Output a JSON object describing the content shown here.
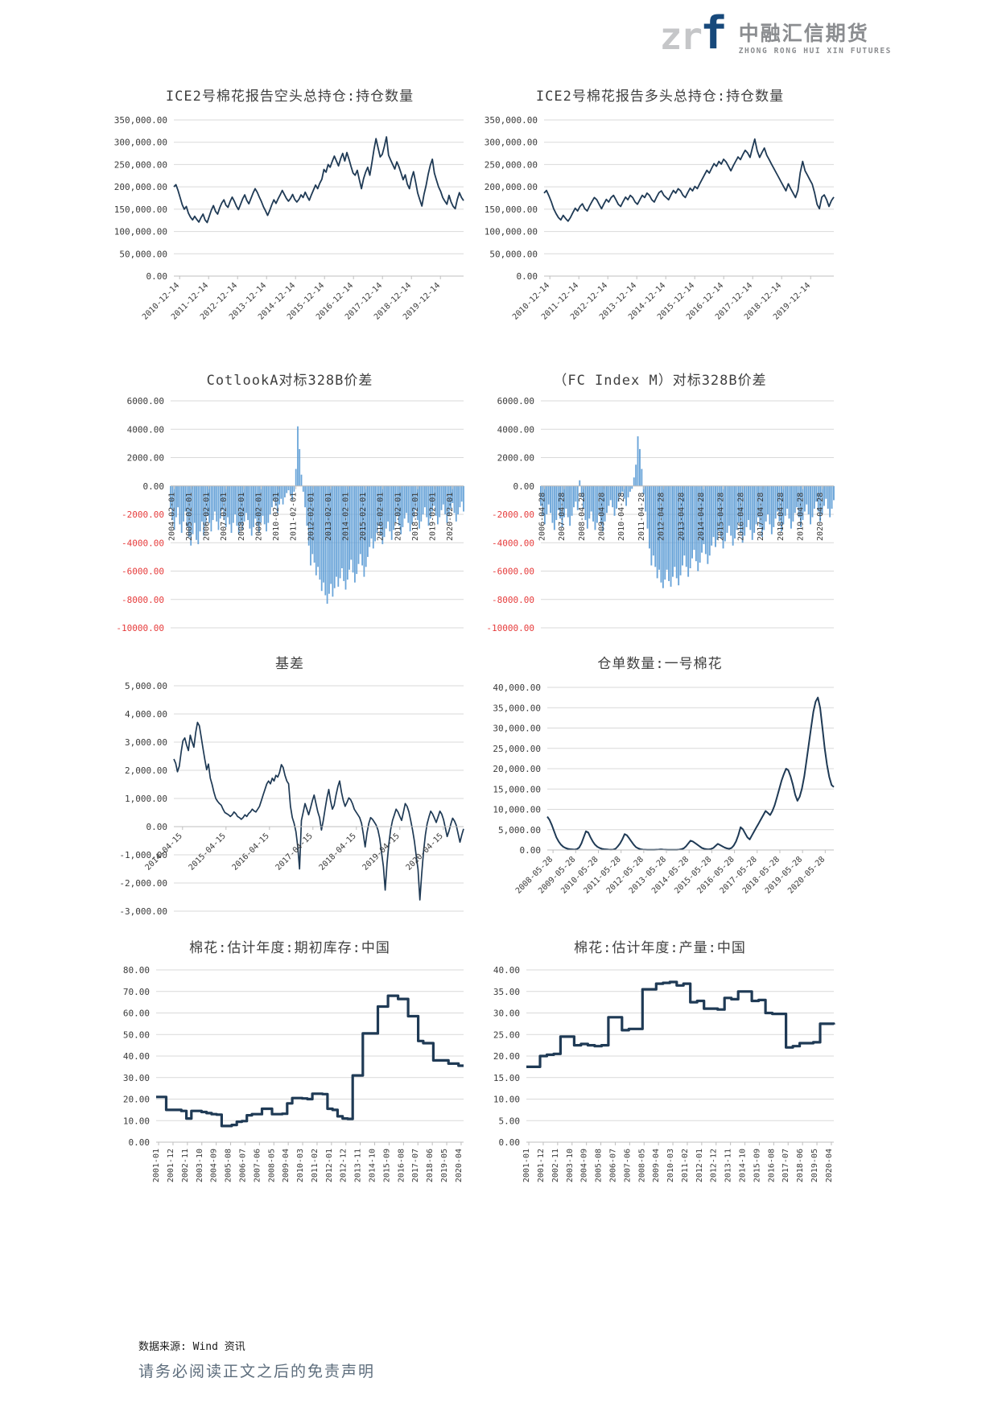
{
  "logo": {
    "zr": "zr",
    "f": "f",
    "cn": "中融汇信期货",
    "en": "ZHONG RONG HUI XIN FUTURES"
  },
  "footer": {
    "source": "数据来源: Wind 资讯",
    "disclaimer": "请务必阅读正文之后的免责声明"
  },
  "colors": {
    "line": "#1f3a55",
    "bar": "#5b9bd5",
    "grid": "#d9d9d9",
    "axis": "#bfbfbf",
    "tick_text": "#3b3b3b",
    "neg_red": "#e63c3c",
    "title": "#3f3f3f"
  },
  "chart_data": [
    {
      "type": "line",
      "title": "ICE2号棉花报告空头总持仓:持仓数量",
      "ylim": [
        0,
        350000
      ],
      "ystep": 50000,
      "yformat": "comma",
      "neg_red": false,
      "x_labels": [
        "2010-12-14",
        "2011-12-14",
        "2012-12-14",
        "2013-12-14",
        "2014-12-14",
        "2015-12-14",
        "2016-12-14",
        "2017-12-14",
        "2018-12-14",
        "2019-12-14"
      ],
      "x_rotate": 45,
      "x_anchor": "bottom",
      "tick_start": 0.02,
      "tick_span": 0.9,
      "value_scale": 1000,
      "values": [
        200,
        205,
        192,
        176,
        160,
        150,
        156,
        141,
        132,
        126,
        134,
        127,
        121,
        131,
        139,
        126,
        120,
        134,
        148,
        158,
        145,
        139,
        153,
        164,
        171,
        159,
        154,
        167,
        177,
        168,
        157,
        149,
        161,
        173,
        182,
        170,
        162,
        174,
        186,
        196,
        188,
        177,
        167,
        155,
        146,
        136,
        147,
        160,
        171,
        163,
        173,
        182,
        192,
        183,
        174,
        168,
        174,
        183,
        172,
        166,
        172,
        182,
        176,
        188,
        178,
        170,
        182,
        193,
        204,
        196,
        208,
        217,
        239,
        233,
        250,
        244,
        257,
        269,
        258,
        247,
        263,
        275,
        258,
        277,
        262,
        246,
        231,
        226,
        237,
        216,
        196,
        218,
        233,
        244,
        226,
        253,
        283,
        308,
        287,
        267,
        273,
        291,
        312,
        271,
        260,
        250,
        240,
        256,
        245,
        231,
        216,
        227,
        206,
        196,
        219,
        234,
        211,
        186,
        171,
        157,
        183,
        203,
        228,
        248,
        262,
        231,
        215,
        200,
        190,
        176,
        168,
        161,
        181,
        166,
        156,
        151,
        172,
        187,
        176,
        169
      ]
    },
    {
      "type": "line",
      "title": "ICE2号棉花报告多头总持仓:持仓数量",
      "ylim": [
        0,
        350000
      ],
      "ystep": 50000,
      "yformat": "comma",
      "neg_red": false,
      "x_labels": [
        "2010-12-14",
        "2011-12-14",
        "2012-12-14",
        "2013-12-14",
        "2014-12-14",
        "2015-12-14",
        "2016-12-14",
        "2017-12-14",
        "2018-12-14",
        "2019-12-14"
      ],
      "x_rotate": 45,
      "x_anchor": "bottom",
      "tick_start": 0.02,
      "tick_span": 0.9,
      "value_scale": 1000,
      "values": [
        186,
        192,
        180,
        167,
        151,
        140,
        131,
        126,
        136,
        129,
        123,
        131,
        142,
        152,
        146,
        156,
        162,
        151,
        146,
        157,
        167,
        176,
        171,
        161,
        151,
        162,
        172,
        166,
        176,
        181,
        171,
        161,
        156,
        167,
        177,
        171,
        181,
        176,
        166,
        161,
        171,
        181,
        176,
        186,
        181,
        171,
        166,
        177,
        187,
        191,
        181,
        176,
        171,
        182,
        192,
        186,
        196,
        191,
        181,
        176,
        187,
        197,
        191,
        201,
        196,
        207,
        217,
        227,
        237,
        231,
        242,
        252,
        246,
        257,
        251,
        262,
        256,
        246,
        236,
        247,
        257,
        267,
        261,
        272,
        282,
        276,
        266,
        287,
        307,
        281,
        266,
        277,
        287,
        271,
        261,
        251,
        241,
        231,
        221,
        211,
        201,
        191,
        207,
        196,
        186,
        176,
        192,
        232,
        257,
        236,
        226,
        216,
        206,
        186,
        161,
        151,
        177,
        182,
        171,
        156,
        169,
        177
      ]
    },
    {
      "type": "bar",
      "title": "CotlookA对标328B价差",
      "ylim": [
        -10000,
        6000
      ],
      "ystep": 2000,
      "yformat": "plain",
      "neg_red": true,
      "x_labels": [
        "2004-02-01",
        "2005-02-01",
        "2006-02-01",
        "2007-02-01",
        "2008-02-01",
        "2009-02-01",
        "2010-02-01",
        "2011-02-01",
        "2012-02-01",
        "2013-02-01",
        "2014-02-01",
        "2015-02-01",
        "2016-02-01",
        "2017-02-01",
        "2018-02-01",
        "2019-02-01",
        "2020-02-01"
      ],
      "x_rotate": 90,
      "x_anchor": "zero",
      "tick_start": 0.012,
      "tick_span": 0.95,
      "values": [
        -1600,
        -2400,
        -3100,
        -2200,
        -1500,
        -2700,
        -3300,
        -2500,
        -1800,
        -2900,
        -3600,
        -4200,
        -3400,
        -2600,
        -3800,
        -4100,
        -3200,
        -2500,
        -3500,
        -2800,
        -2100,
        -2600,
        -3200,
        -2400,
        -1800,
        -2500,
        -3100,
        -2300,
        -1700,
        -2400,
        -2900,
        -2200,
        -2700,
        -3300,
        -2600,
        -2000,
        -2800,
        -3400,
        -2700,
        -3100,
        -2500,
        -1900,
        -2400,
        -3000,
        -3500,
        -2900,
        -2300,
        -2800,
        -3300,
        -2600,
        -2100,
        -2700,
        -3200,
        -2600,
        -2000,
        -1500,
        -1000,
        -1400,
        -1900,
        -1300,
        -900,
        -1300,
        -800,
        -500,
        -300,
        -600,
        -1000,
        -400,
        1200,
        4200,
        2600,
        800,
        -400,
        -1500,
        -2800,
        -4200,
        -5600,
        -4800,
        -5400,
        -6300,
        -5700,
        -6600,
        -7400,
        -6800,
        -7700,
        -8300,
        -7600,
        -6900,
        -7800,
        -7200,
        -6400,
        -7100,
        -6500,
        -5800,
        -6700,
        -7300,
        -6600,
        -5900,
        -5200,
        -6100,
        -6800,
        -6200,
        -5500,
        -4800,
        -5600,
        -6400,
        -5700,
        -5000,
        -4300,
        -3700,
        -4400,
        -3900,
        -3300,
        -2800,
        -3500,
        -4100,
        -3600,
        -3000,
        -2500,
        -3200,
        -3800,
        -3100,
        -2600,
        -2100,
        -2800,
        -3400,
        -2900,
        -2300,
        -1900,
        -2600,
        -3200,
        -2700,
        -2200,
        -1700,
        -2400,
        -3000,
        -2500,
        -2000,
        -1500,
        -2200,
        -2800,
        -2300,
        -1800,
        -1400,
        -2100,
        -2700,
        -2200,
        -1700,
        -1300,
        -2000,
        -2600,
        -2100,
        -1600,
        -1200,
        -1900,
        -2500,
        -2000,
        -1500,
        -1100,
        -1800
      ]
    },
    {
      "type": "bar",
      "title": "（FC Index M）对标328B价差",
      "ylim": [
        -10000,
        6000
      ],
      "ystep": 2000,
      "yformat": "plain",
      "neg_red": true,
      "x_labels": [
        "2006-04-28",
        "2007-04-28",
        "2008-04-28",
        "2009-04-28",
        "2010-04-28",
        "2011-04-28",
        "2012-04-28",
        "2013-04-28",
        "2014-04-28",
        "2015-04-28",
        "2016-04-28",
        "2017-04-28",
        "2018-04-28",
        "2019-04-28",
        "2020-04-28"
      ],
      "x_rotate": 90,
      "x_anchor": "zero",
      "tick_start": 0.012,
      "tick_span": 0.95,
      "values": [
        -1400,
        -2100,
        -2700,
        -2000,
        -1300,
        -1900,
        -2600,
        -3100,
        -2400,
        -1700,
        -2300,
        -2900,
        -2200,
        -1600,
        -2200,
        -2800,
        -2100,
        -1500,
        -1100,
        -1700,
        400,
        -800,
        -1600,
        -2400,
        -3000,
        -2300,
        -1800,
        -2500,
        -3100,
        -2600,
        -2000,
        -2700,
        -3200,
        -2500,
        -1900,
        -1400,
        -1000,
        -1500,
        -2100,
        -1600,
        -1100,
        -700,
        -400,
        -900,
        -1400,
        -800,
        -400,
        -200,
        600,
        1500,
        3500,
        2600,
        1200,
        -600,
        -1800,
        -3000,
        -4400,
        -5600,
        -4900,
        -5700,
        -6500,
        -5900,
        -6800,
        -7200,
        -6600,
        -5900,
        -6700,
        -7100,
        -6400,
        -5700,
        -6500,
        -7000,
        -6300,
        -5600,
        -4900,
        -5700,
        -6400,
        -5800,
        -5100,
        -4500,
        -5300,
        -6000,
        -5400,
        -4700,
        -4100,
        -4800,
        -5500,
        -4900,
        -4200,
        -3600,
        -4300,
        -3800,
        -3200,
        -3700,
        -4400,
        -3900,
        -3300,
        -2800,
        -3500,
        -4200,
        -3700,
        -3100,
        -2600,
        -3300,
        -4000,
        -3500,
        -2900,
        -2400,
        -3100,
        -3800,
        -3300,
        -2700,
        -2200,
        -2900,
        -3600,
        -3100,
        -2500,
        -2000,
        -2700,
        -3400,
        -2900,
        -2300,
        -1800,
        -2500,
        -3200,
        -2700,
        -2100,
        -1600,
        -2300,
        -3000,
        -2500,
        -1900,
        -1500,
        -2200,
        -2900,
        -2400,
        -1800,
        -1300,
        -2000,
        -2700,
        -2200,
        -1600,
        -1100,
        -1800,
        -2500,
        -2000,
        -1400,
        -900,
        -1600,
        -2200,
        -1600,
        -1000
      ]
    },
    {
      "type": "line",
      "title": "基差",
      "ylim": [
        -3000,
        5000
      ],
      "ystep": 1000,
      "yformat": "comma",
      "neg_red": false,
      "x_labels": [
        "2014-04-15",
        "2015-04-15",
        "2016-04-15",
        "2017-04-15",
        "2018-04-15",
        "2019-04-15",
        "2020-04-15"
      ],
      "x_rotate": 45,
      "x_anchor": "zero",
      "tick_start": 0.03,
      "tick_span": 0.9,
      "values": [
        2400,
        2250,
        1950,
        2150,
        2650,
        3050,
        3150,
        2900,
        2700,
        3250,
        3020,
        2820,
        3350,
        3700,
        3580,
        3180,
        2780,
        2380,
        2020,
        2220,
        1720,
        1500,
        1220,
        1000,
        900,
        820,
        760,
        620,
        500,
        460,
        420,
        360,
        420,
        520,
        460,
        360,
        320,
        260,
        320,
        420,
        360,
        460,
        520,
        620,
        560,
        520,
        620,
        720,
        920,
        1120,
        1320,
        1520,
        1620,
        1520,
        1720,
        1620,
        1820,
        1760,
        1920,
        2200,
        2100,
        1820,
        1620,
        1520,
        720,
        320,
        120,
        -180,
        -720,
        -1500,
        220,
        520,
        820,
        620,
        420,
        660,
        920,
        1120,
        820,
        520,
        320,
        -120,
        220,
        620,
        1020,
        1320,
        920,
        620,
        760,
        1120,
        1420,
        1620,
        1220,
        920,
        720,
        860,
        1020,
        960,
        820,
        620,
        520,
        420,
        320,
        120,
        -280,
        -720,
        -220,
        120,
        320,
        260,
        160,
        60,
        -120,
        -420,
        -920,
        -1420,
        -2250,
        -1300,
        -600,
        -100,
        220,
        420,
        620,
        520,
        360,
        220,
        520,
        820,
        720,
        520,
        220,
        -120,
        -520,
        -1020,
        -1520,
        -2600,
        -1700,
        -900,
        -300,
        100,
        350,
        550,
        450,
        300,
        150,
        350,
        550,
        450,
        250,
        -50,
        -350,
        -150,
        100,
        300,
        200,
        50,
        -250,
        -550,
        -300,
        -80
      ]
    },
    {
      "type": "line",
      "title": "仓单数量:一号棉花",
      "ylim": [
        0,
        40000
      ],
      "ystep": 5000,
      "yformat": "comma",
      "neg_red": false,
      "x_labels": [
        "2008-05-28",
        "2009-05-28",
        "2010-05-28",
        "2011-05-28",
        "2012-05-28",
        "2013-05-28",
        "2014-05-28",
        "2015-05-28",
        "2016-05-28",
        "2017-05-28",
        "2018-05-28",
        "2019-05-28",
        "2020-05-28"
      ],
      "x_rotate": 45,
      "x_anchor": "bottom",
      "tick_start": 0.02,
      "tick_span": 0.95,
      "values": [
        8200,
        7400,
        6100,
        4600,
        3100,
        2100,
        1300,
        800,
        500,
        300,
        200,
        150,
        100,
        200,
        600,
        1600,
        3100,
        4600,
        4300,
        3100,
        2100,
        1300,
        800,
        500,
        300,
        200,
        150,
        100,
        80,
        100,
        300,
        900,
        1600,
        2600,
        3900,
        3600,
        2900,
        2100,
        1300,
        700,
        400,
        200,
        100,
        80,
        60,
        50,
        40,
        60,
        80,
        100,
        150,
        100,
        80,
        60,
        50,
        40,
        30,
        50,
        100,
        200,
        400,
        900,
        1600,
        2300,
        2100,
        1700,
        1300,
        900,
        500,
        300,
        200,
        150,
        250,
        500,
        1000,
        1500,
        1200,
        900,
        600,
        400,
        300,
        500,
        1100,
        2100,
        3600,
        5600,
        5100,
        4100,
        3100,
        2600,
        3600,
        4600,
        5600,
        6600,
        7600,
        8600,
        9600,
        9100,
        8600,
        9600,
        11000,
        13000,
        15000,
        17000,
        18600,
        20000,
        19600,
        18100,
        16100,
        13600,
        12100,
        13100,
        15100,
        18100,
        22000,
        26000,
        30000,
        34000,
        36500,
        37500,
        35000,
        30000,
        25000,
        21000,
        18000,
        16000,
        15500
      ]
    },
    {
      "type": "step",
      "title": "棉花:估计年度:期初库存:中国",
      "ylim": [
        0,
        80
      ],
      "ystep": 10,
      "yformat": "plain",
      "neg_red": false,
      "x_labels": [
        "2001-01",
        "2001-12",
        "2002-11",
        "2003-10",
        "2004-09",
        "2005-08",
        "2006-07",
        "2007-06",
        "2008-05",
        "2009-04",
        "2010-03",
        "2011-02",
        "2012-01",
        "2012-12",
        "2013-11",
        "2014-10",
        "2015-09",
        "2016-08",
        "2017-07",
        "2018-06",
        "2019-05",
        "2020-04"
      ],
      "x_rotate": 90,
      "x_anchor": "bottom",
      "tick_start": 0.008,
      "tick_span": 0.984,
      "values": [
        21,
        21,
        15,
        15,
        15,
        14.5,
        11,
        14.5,
        14.5,
        14,
        13.5,
        13,
        12.8,
        7.5,
        7.5,
        8,
        9.5,
        9.8,
        12.5,
        13,
        13,
        15.5,
        15.5,
        13,
        13,
        13.2,
        18,
        20.5,
        20.5,
        20.3,
        20,
        22.5,
        22.5,
        22.3,
        15.5,
        15,
        12,
        11,
        10.8,
        31,
        31,
        50.5,
        50.5,
        50.5,
        63,
        63,
        68,
        68,
        66.5,
        66.5,
        58.5,
        58.5,
        47,
        46,
        46,
        38,
        38,
        38,
        36.5,
        36.5,
        35.5,
        35.5
      ]
    },
    {
      "type": "step",
      "title": "棉花:估计年度:产量:中国",
      "ylim": [
        0,
        40
      ],
      "ystep": 5,
      "yformat": "plain",
      "neg_red": false,
      "x_labels": [
        "2001-01",
        "2001-12",
        "2002-11",
        "2003-10",
        "2004-09",
        "2005-08",
        "2006-07",
        "2007-06",
        "2008-05",
        "2009-04",
        "2010-03",
        "2011-02",
        "2012-01",
        "2012-12",
        "2013-11",
        "2014-10",
        "2015-09",
        "2016-08",
        "2017-07",
        "2018-06",
        "2019-05",
        "2020-04"
      ],
      "x_rotate": 90,
      "x_anchor": "bottom",
      "tick_start": 0.008,
      "tick_span": 0.984,
      "values": [
        17.5,
        17.5,
        20,
        20.3,
        20.5,
        24.5,
        24.5,
        22.5,
        22.8,
        22.5,
        22.3,
        22.5,
        29,
        29,
        26,
        26.3,
        26.3,
        35.5,
        35.5,
        36.8,
        37,
        37.2,
        36.4,
        36.8,
        32.5,
        32.8,
        31,
        31,
        30.8,
        33.5,
        33.2,
        35,
        35,
        32.8,
        33,
        30,
        29.8,
        29.8,
        22,
        22.3,
        23,
        23,
        23.2,
        27.5,
        27.5,
        27.3
      ]
    }
  ]
}
